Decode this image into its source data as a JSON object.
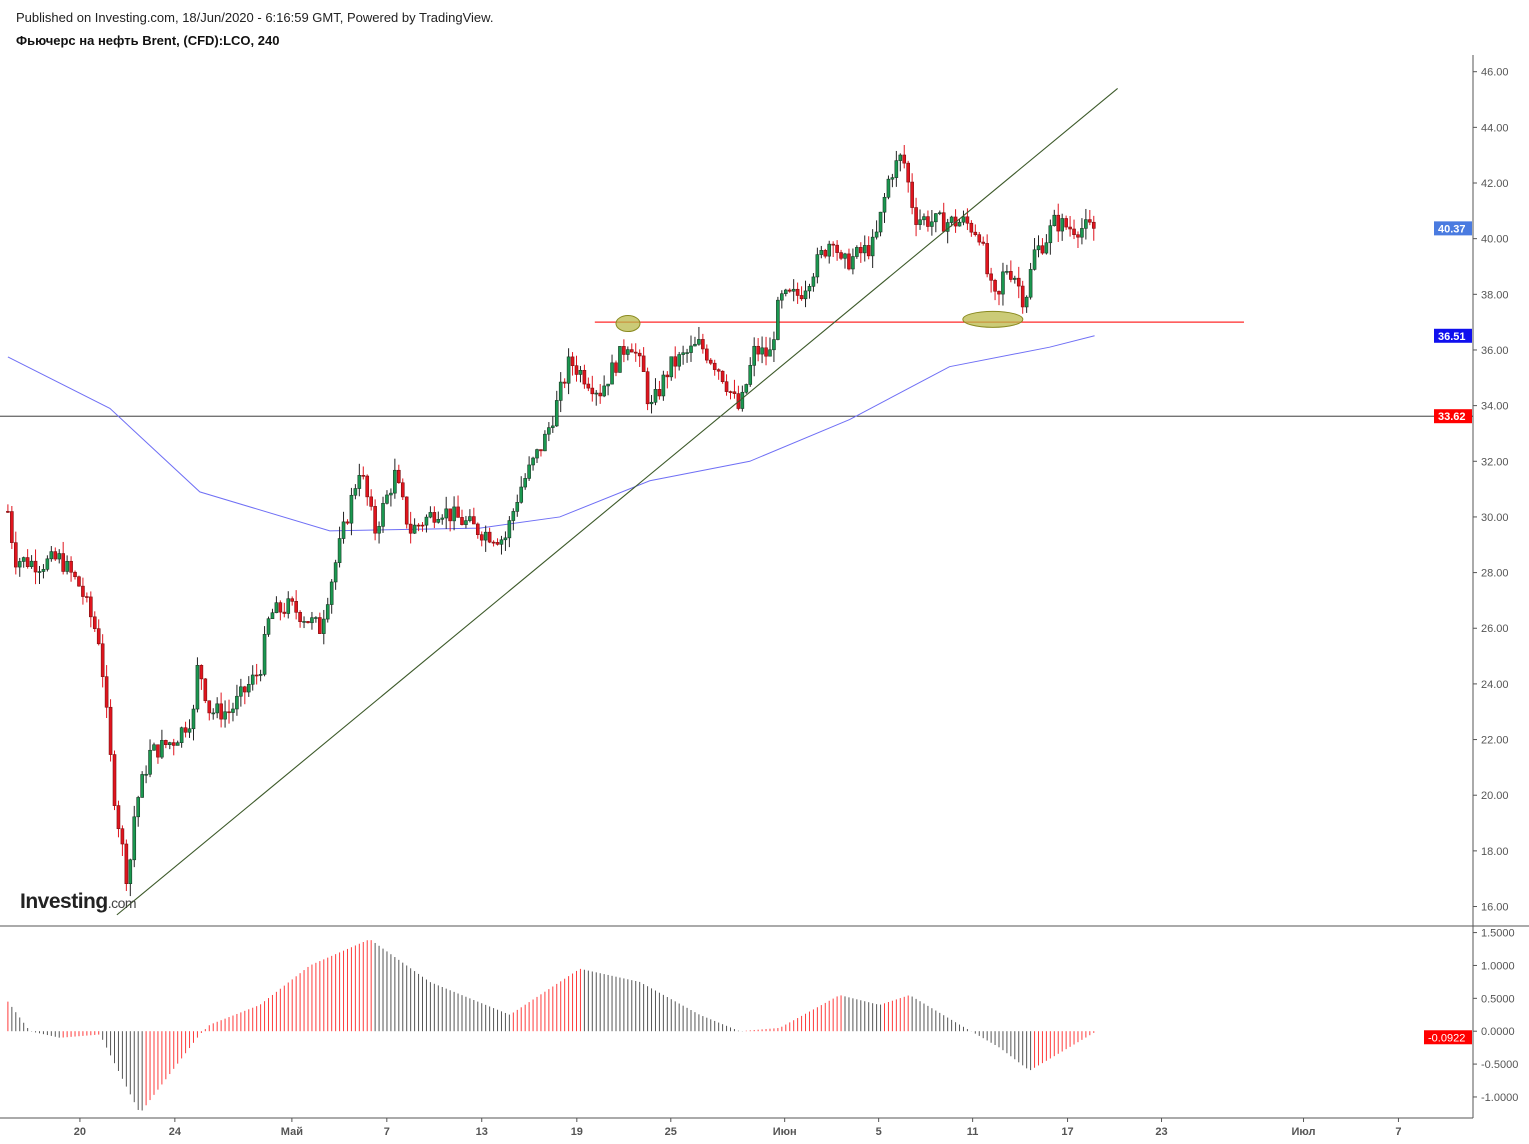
{
  "header": {
    "published": "Published on Investing.com, 18/Jun/2020 - 6:16:59 GMT, Powered by TradingView.",
    "title": "Фьючерс на нефть Brent, (CFD):LCO, 240"
  },
  "logo": {
    "main": "Investing",
    "suffix": ".com"
  },
  "colors": {
    "up": "#1a9850",
    "down": "#e0141e",
    "ma": "#6f6ff5",
    "trend": "#3d5a2a",
    "level": "#ff2a2a",
    "ellipse": "#b9b94a",
    "osc_up": "#ff3b3b",
    "osc_down": "#555555"
  },
  "chart_data": {
    "type": "candlestick",
    "symbol": "LCO",
    "interval": "240",
    "price_axis": {
      "ticks": [
        "46.00",
        "44.00",
        "42.00",
        "40.00",
        "38.00",
        "36.00",
        "34.00",
        "32.00",
        "30.00",
        "28.00",
        "26.00",
        "24.00",
        "22.00",
        "20.00",
        "18.00",
        "16.00"
      ],
      "range": [
        15.3,
        46.6
      ]
    },
    "price_labels": [
      {
        "value": 40.37,
        "text": "40.37",
        "color": "#4a7be0"
      },
      {
        "value": 36.51,
        "text": "36.51",
        "color": "#1010ee"
      },
      {
        "value": 33.62,
        "text": "33.62",
        "color": "#ff0000"
      }
    ],
    "time_axis": [
      {
        "t": 0,
        "label": "20"
      },
      {
        "t": 6.01,
        "label": "24"
      },
      {
        "t": 13.42,
        "label": "Май"
      },
      {
        "t": 19.43,
        "label": "7"
      },
      {
        "t": 25.44,
        "label": "13"
      },
      {
        "t": 31.46,
        "label": "19"
      },
      {
        "t": 37.41,
        "label": "25"
      },
      {
        "t": 44.62,
        "label": "Июн"
      },
      {
        "t": 50.57,
        "label": "5"
      },
      {
        "t": 56.52,
        "label": "11"
      },
      {
        "t": 62.53,
        "label": "17"
      },
      {
        "t": 68.48,
        "label": "23"
      },
      {
        "t": 77.47,
        "label": "Июл"
      },
      {
        "t": 83.48,
        "label": "7"
      }
    ],
    "time_range": [
      -5.06,
      88.2
    ],
    "price_path": [
      [
        -4.56,
        30.2
      ],
      [
        -4.11,
        28.5
      ],
      [
        -2.53,
        28.3
      ],
      [
        -1.27,
        28.5
      ],
      [
        0,
        27.5
      ],
      [
        1.27,
        25.5
      ],
      [
        1.9,
        21.5
      ],
      [
        2.22,
        19.8
      ],
      [
        3.04,
        16.8
      ],
      [
        3.48,
        19.5
      ],
      [
        4.43,
        21.5
      ],
      [
        6.01,
        22
      ],
      [
        7.28,
        23
      ],
      [
        7.47,
        24.8
      ],
      [
        8.23,
        23
      ],
      [
        9.49,
        23
      ],
      [
        11.39,
        24.5
      ],
      [
        12.03,
        26.5
      ],
      [
        13.29,
        26.8
      ],
      [
        15.19,
        26
      ],
      [
        16.46,
        29
      ],
      [
        17.72,
        31.8
      ],
      [
        18.67,
        29.5
      ],
      [
        19.94,
        31.5
      ],
      [
        20.89,
        29.5
      ],
      [
        22.78,
        30.3
      ],
      [
        25.32,
        29.5
      ],
      [
        26.9,
        29.2
      ],
      [
        27.85,
        31
      ],
      [
        29.43,
        32.8
      ],
      [
        30.06,
        33.8
      ],
      [
        31.01,
        35.6
      ],
      [
        32.91,
        34.5
      ],
      [
        34.81,
        36.4
      ],
      [
        35.76,
        35
      ],
      [
        36.08,
        33.8
      ],
      [
        37.34,
        35.4
      ],
      [
        39.24,
        36.2
      ],
      [
        40.51,
        35.3
      ],
      [
        41.77,
        33.8
      ],
      [
        42.72,
        36
      ],
      [
        43.67,
        35.8
      ],
      [
        44.3,
        37.8
      ],
      [
        45.57,
        38
      ],
      [
        46.84,
        39.3
      ],
      [
        47.78,
        40.2
      ],
      [
        48.1,
        39
      ],
      [
        50.32,
        39.8
      ],
      [
        51.27,
        42.3
      ],
      [
        52.09,
        43
      ],
      [
        52.85,
        40.8
      ],
      [
        54.11,
        40.6
      ],
      [
        56.01,
        40.6
      ],
      [
        56.96,
        40.2
      ],
      [
        57.59,
        38.3
      ],
      [
        58.1,
        37.6
      ],
      [
        58.54,
        39
      ],
      [
        59.18,
        38.7
      ],
      [
        59.81,
        37.7
      ],
      [
        60.44,
        39.5
      ],
      [
        61.08,
        39.9
      ],
      [
        61.71,
        40.6
      ],
      [
        62.66,
        40.4
      ],
      [
        64.24,
        40.37
      ]
    ],
    "moving_average": [
      [
        -4.56,
        35.75
      ],
      [
        1.9,
        33.9
      ],
      [
        7.59,
        30.9
      ],
      [
        15.82,
        29.5
      ],
      [
        25.32,
        29.6
      ],
      [
        30.38,
        30.0
      ],
      [
        36.08,
        31.3
      ],
      [
        42.41,
        32.0
      ],
      [
        48.73,
        33.5
      ],
      [
        55.06,
        35.4
      ],
      [
        61.39,
        36.1
      ],
      [
        64.24,
        36.51
      ]
    ],
    "trendline": [
      [
        2.34,
        15.7
      ],
      [
        65.7,
        45.4
      ]
    ],
    "support_level": {
      "value": 37.0,
      "from": 32.6,
      "to": 73.7
    },
    "current_level": 33.62,
    "highlights": [
      [
        34.7,
        36.95
      ],
      [
        57.8,
        37.1
      ]
    ],
    "oscillator": {
      "ticks": [
        "1.5000",
        "1.0000",
        "0.5000",
        "0.0000",
        "-0.5000",
        "-1.0000"
      ],
      "tick_values": [
        1.5,
        1.0,
        0.5,
        0,
        -0.5,
        -1.0
      ],
      "range": [
        -1.32,
        1.6
      ],
      "last": {
        "value": -0.0922,
        "text": "-0.0922",
        "color": "#ff0000"
      },
      "path": [
        [
          -4.56,
          0.45
        ],
        [
          -3.16,
          0
        ],
        [
          -1.27,
          -0.1
        ],
        [
          1.27,
          -0.05
        ],
        [
          3.8,
          -1.25
        ],
        [
          7.59,
          -0.05
        ],
        [
          8.23,
          0.1
        ],
        [
          11.39,
          0.4
        ],
        [
          14.56,
          1.0
        ],
        [
          18.35,
          1.4
        ],
        [
          22.15,
          0.75
        ],
        [
          27.22,
          0.25
        ],
        [
          31.65,
          0.95
        ],
        [
          35.44,
          0.75
        ],
        [
          39.24,
          0.25
        ],
        [
          41.77,
          0
        ],
        [
          44.3,
          0.05
        ],
        [
          48.1,
          0.55
        ],
        [
          50.63,
          0.4
        ],
        [
          52.53,
          0.55
        ],
        [
          55.7,
          0.1
        ],
        [
          58.23,
          -0.25
        ],
        [
          60.13,
          -0.6
        ],
        [
          64.37,
          0
        ]
      ]
    }
  }
}
